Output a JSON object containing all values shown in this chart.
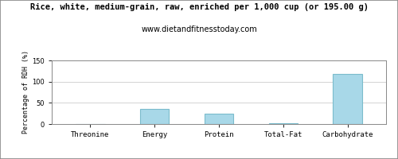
{
  "title": "Rice, white, medium-grain, raw, enriched per 1,000 cup (or 195.00 g)",
  "subtitle": "www.dietandfitnesstoday.com",
  "categories": [
    "Threonine",
    "Energy",
    "Protein",
    "Total-Fat",
    "Carbohydrate"
  ],
  "values": [
    0,
    35,
    24,
    2,
    119
  ],
  "bar_color": "#a8d8e8",
  "bar_edge_color": "#7bbccc",
  "ylabel": "Percentage of RDH (%)",
  "ylim": [
    0,
    150
  ],
  "yticks": [
    0,
    50,
    100,
    150
  ],
  "title_fontsize": 7.5,
  "subtitle_fontsize": 7,
  "ylabel_fontsize": 6,
  "xlabel_fontsize": 6.5,
  "background_color": "#ffffff",
  "grid_color": "#cccccc",
  "outer_border_color": "#aaaaaa"
}
